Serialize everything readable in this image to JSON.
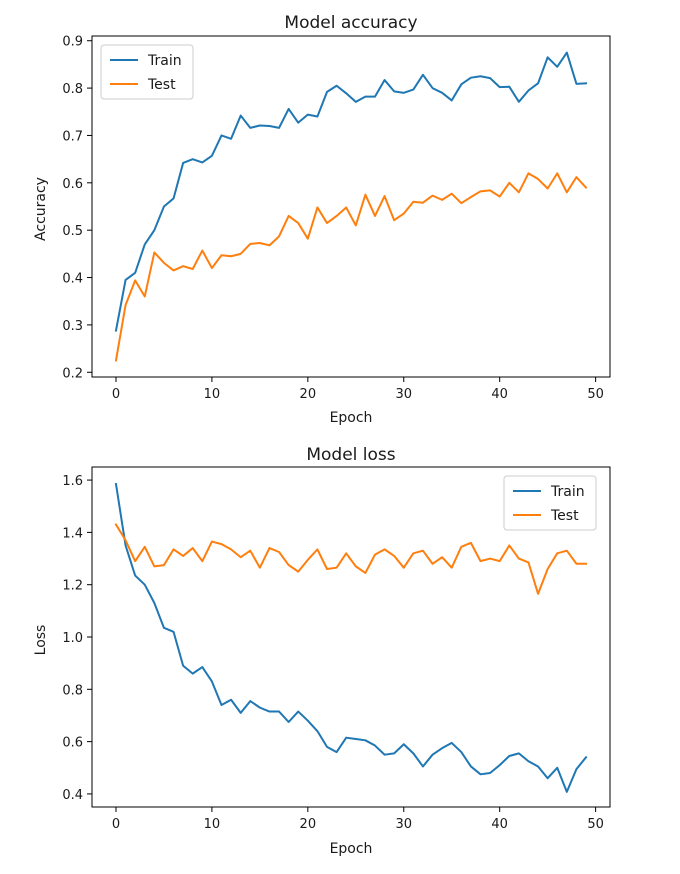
{
  "colors": {
    "train": "#1f77b4",
    "test": "#ff7f0e",
    "axis": "#000000",
    "legend_border": "#cccccc"
  },
  "chart_data": [
    {
      "type": "line",
      "title": "Model accuracy",
      "xlabel": "Epoch",
      "ylabel": "Accuracy",
      "xlim": [
        -2.5,
        51.5
      ],
      "ylim": [
        0.19,
        0.91
      ],
      "xticks": [
        0,
        10,
        20,
        30,
        40,
        50
      ],
      "yticks": [
        0.2,
        0.3,
        0.4,
        0.5,
        0.6,
        0.7,
        0.8,
        0.9
      ],
      "legend_position": "top-left",
      "series": [
        {
          "name": "Train",
          "values": [
            0.288,
            0.395,
            0.41,
            0.47,
            0.5,
            0.55,
            0.567,
            0.642,
            0.65,
            0.643,
            0.657,
            0.7,
            0.693,
            0.742,
            0.716,
            0.721,
            0.72,
            0.716,
            0.756,
            0.727,
            0.744,
            0.74,
            0.792,
            0.805,
            0.789,
            0.771,
            0.782,
            0.782,
            0.817,
            0.793,
            0.79,
            0.797,
            0.828,
            0.8,
            0.79,
            0.774,
            0.808,
            0.822,
            0.825,
            0.821,
            0.802,
            0.803,
            0.771,
            0.795,
            0.81,
            0.865,
            0.845,
            0.875,
            0.809,
            0.81
          ]
        },
        {
          "name": "Test",
          "values": [
            0.225,
            0.342,
            0.394,
            0.36,
            0.453,
            0.431,
            0.415,
            0.424,
            0.418,
            0.457,
            0.42,
            0.447,
            0.445,
            0.45,
            0.471,
            0.473,
            0.468,
            0.487,
            0.53,
            0.515,
            0.482,
            0.548,
            0.515,
            0.53,
            0.548,
            0.51,
            0.575,
            0.53,
            0.572,
            0.521,
            0.535,
            0.56,
            0.558,
            0.573,
            0.564,
            0.577,
            0.557,
            0.57,
            0.582,
            0.584,
            0.571,
            0.6,
            0.58,
            0.62,
            0.608,
            0.588,
            0.62,
            0.58,
            0.612,
            0.59
          ]
        }
      ]
    },
    {
      "type": "line",
      "title": "Model loss",
      "xlabel": "Epoch",
      "ylabel": "Loss",
      "xlim": [
        -2.5,
        51.5
      ],
      "ylim": [
        0.35,
        1.65
      ],
      "xticks": [
        0,
        10,
        20,
        30,
        40,
        50
      ],
      "yticks": [
        0.4,
        0.6,
        0.8,
        1.0,
        1.2,
        1.4,
        1.6
      ],
      "legend_position": "top-right",
      "series": [
        {
          "name": "Train",
          "values": [
            1.585,
            1.35,
            1.235,
            1.2,
            1.13,
            1.035,
            1.02,
            0.89,
            0.86,
            0.885,
            0.83,
            0.74,
            0.76,
            0.71,
            0.755,
            0.73,
            0.715,
            0.715,
            0.675,
            0.715,
            0.68,
            0.64,
            0.58,
            0.56,
            0.615,
            0.61,
            0.605,
            0.585,
            0.55,
            0.555,
            0.59,
            0.555,
            0.505,
            0.55,
            0.575,
            0.595,
            0.56,
            0.505,
            0.475,
            0.48,
            0.51,
            0.545,
            0.555,
            0.525,
            0.505,
            0.46,
            0.5,
            0.408,
            0.495,
            0.54
          ]
        },
        {
          "name": "Test",
          "values": [
            1.43,
            1.37,
            1.29,
            1.345,
            1.27,
            1.275,
            1.335,
            1.31,
            1.34,
            1.29,
            1.365,
            1.355,
            1.335,
            1.305,
            1.33,
            1.265,
            1.34,
            1.325,
            1.275,
            1.25,
            1.295,
            1.335,
            1.26,
            1.265,
            1.32,
            1.27,
            1.245,
            1.315,
            1.335,
            1.31,
            1.265,
            1.32,
            1.33,
            1.28,
            1.305,
            1.265,
            1.345,
            1.36,
            1.29,
            1.3,
            1.29,
            1.35,
            1.3,
            1.285,
            1.165,
            1.26,
            1.32,
            1.33,
            1.28,
            1.28
          ]
        }
      ]
    }
  ]
}
